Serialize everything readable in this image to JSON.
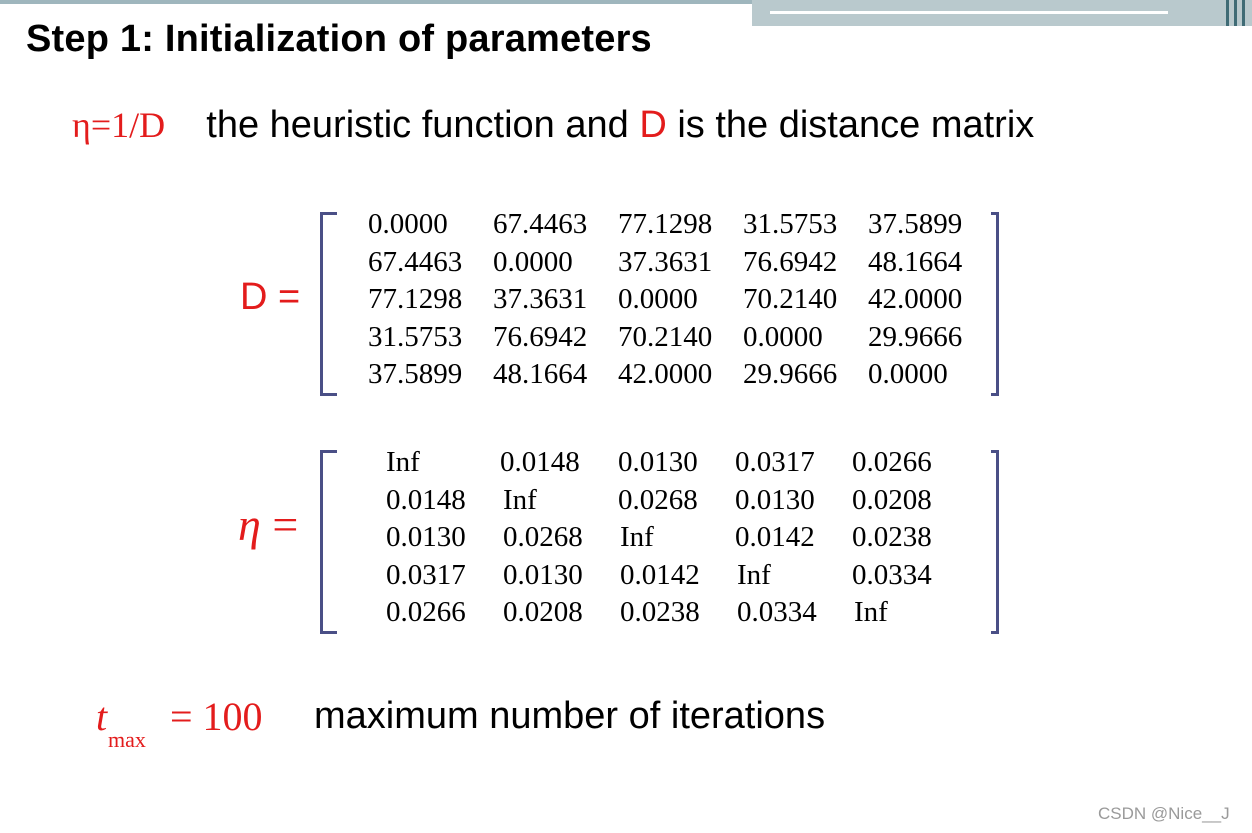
{
  "slide": {
    "title": "Step 1: Initialization of parameters",
    "eta_def": {
      "formula": "η=1/D",
      "text_before": "the heuristic function and ",
      "D_highlight": "D",
      "text_after": " is the distance matrix"
    },
    "D_label": "D =",
    "eta_label_symbol": "η",
    "eta_label_eq": " =",
    "D_matrix": [
      [
        "0.0000",
        "67.4463",
        "77.1298",
        "31.5753",
        "37.5899"
      ],
      [
        "67.4463",
        "0.0000",
        "37.3631",
        "76.6942",
        "48.1664"
      ],
      [
        "77.1298",
        "37.3631",
        "0.0000",
        "70.2140",
        "42.0000"
      ],
      [
        "31.5753",
        "76.6942",
        "70.2140",
        "0.0000",
        "29.9666"
      ],
      [
        "37.5899",
        "48.1664",
        "42.0000",
        "29.9666",
        "0.0000"
      ]
    ],
    "eta_matrix": [
      [
        "Inf",
        "0.0148",
        "0.0130",
        "0.0317",
        "0.0266"
      ],
      [
        "0.0148",
        "Inf",
        "0.0268",
        "0.0130",
        "0.0208"
      ],
      [
        "0.0130",
        "0.0268",
        "Inf",
        "0.0142",
        "0.0238"
      ],
      [
        "0.0317",
        "0.0130",
        "0.0142",
        "Inf",
        "0.0334"
      ],
      [
        "0.0266",
        "0.0208",
        "0.0238",
        "0.0334",
        "Inf"
      ]
    ],
    "tmax": {
      "symbol": "t",
      "subscript": "max",
      "value": "= 100",
      "description": "maximum number of iterations"
    }
  },
  "watermark": "CSDN @Nice__J",
  "colors": {
    "accent_red": "#e31c1c",
    "bracket": "#4a4f86",
    "topbar": "#b9c9cd"
  }
}
